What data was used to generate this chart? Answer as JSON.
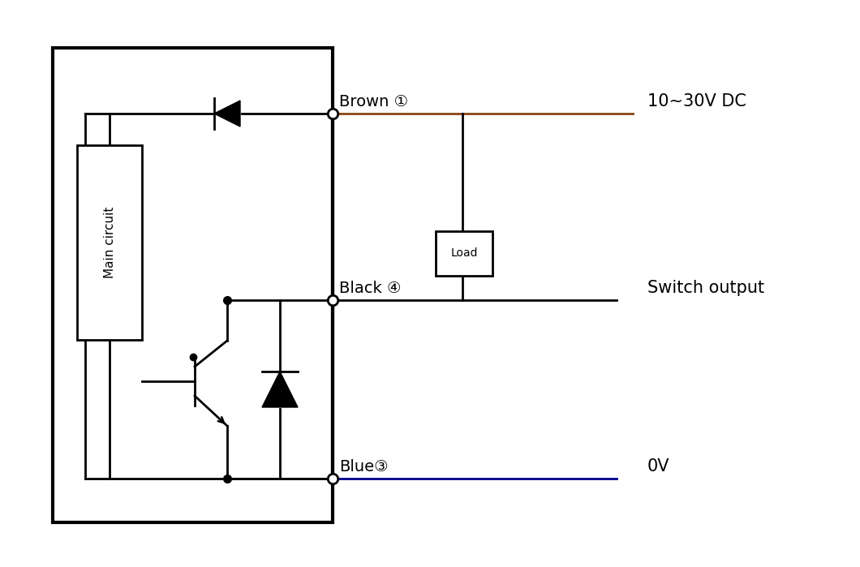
{
  "bg_color": "#ffffff",
  "line_color": "#000000",
  "brown_color": "#8B4513",
  "blue_color": "#00008B",
  "figsize": [
    10.6,
    6.99
  ],
  "dpi": 100,
  "brown_wire_label": "Brown ①",
  "black_wire_label": "Black ④",
  "blue_wire_label": "Blue③",
  "dc_label": "10~30V DC",
  "switch_label": "Switch output",
  "ov_label": "0V",
  "load_label": "Load",
  "main_circuit_text": "Main circuit"
}
